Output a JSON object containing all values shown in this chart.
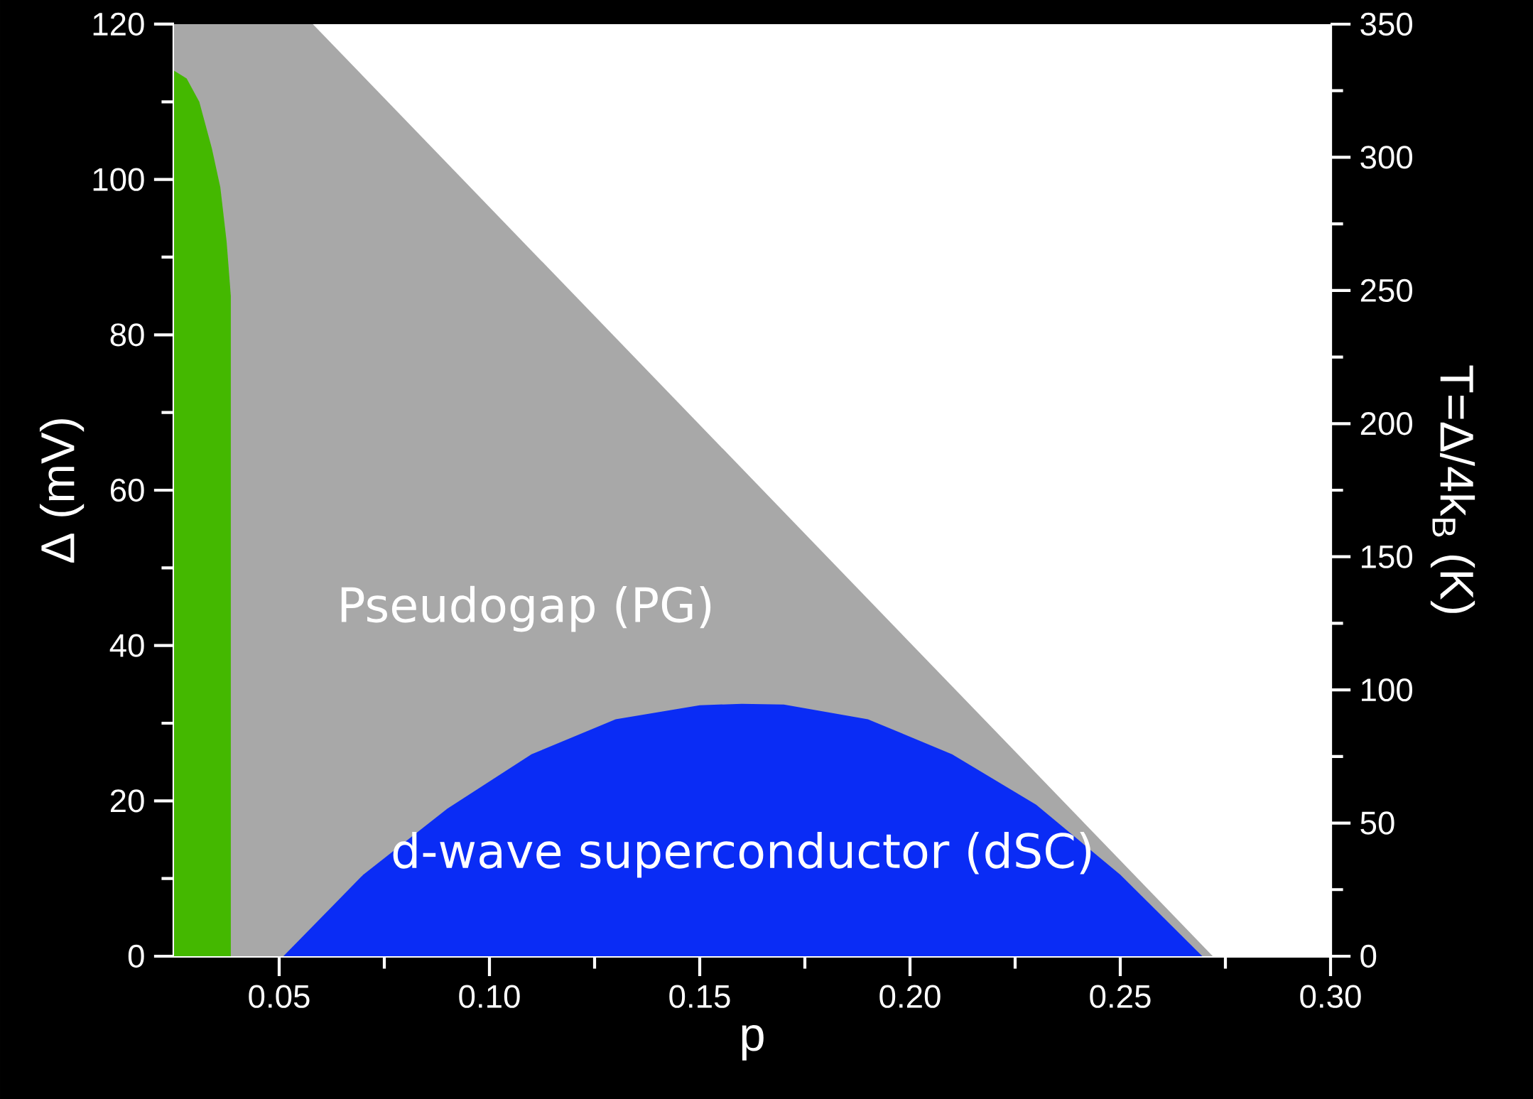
{
  "chart_data": {
    "type": "area",
    "xlabel": "p",
    "ylabel": "Δ (mV)",
    "y2label": "T=Δ/4k$_{B}$ (K)",
    "xlim": [
      0.025,
      0.3
    ],
    "ylim": [
      0,
      120
    ],
    "y2lim": [
      0,
      350
    ],
    "xticks": [
      0.05,
      {
        "value": 0.1,
        "label": "0.10"
      },
      0.15,
      {
        "value": 0.2,
        "label": "0.20"
      },
      0.25,
      {
        "value": 0.3,
        "label": "0.30"
      }
    ],
    "yticks": [
      0,
      20,
      40,
      60,
      80,
      100,
      120
    ],
    "y2ticks": [
      0,
      50,
      100,
      150,
      200,
      250,
      300,
      350
    ],
    "series": [
      {
        "name": "Pseudogap (PG)",
        "color": "#a8a8a8",
        "x": [
          0.025,
          0.058,
          0.272
        ],
        "values": [
          120,
          120,
          0
        ]
      },
      {
        "color": "#44b800",
        "x": [
          0.025,
          0.028,
          0.031,
          0.034,
          0.036,
          0.0375,
          0.0385,
          0.0385
        ],
        "values": [
          114,
          113,
          110,
          104,
          99,
          92,
          85,
          0
        ]
      },
      {
        "name": "d-wave superconductor (dSC)",
        "color": "#0a2cf5",
        "x": [
          0.051,
          0.07,
          0.09,
          0.11,
          0.13,
          0.15,
          0.16,
          0.17,
          0.19,
          0.21,
          0.23,
          0.25,
          0.2695
        ],
        "values": [
          0,
          10.5,
          19,
          26,
          30.5,
          32.3,
          32.5,
          32.4,
          30.5,
          26,
          19.5,
          10.5,
          0
        ]
      }
    ]
  }
}
